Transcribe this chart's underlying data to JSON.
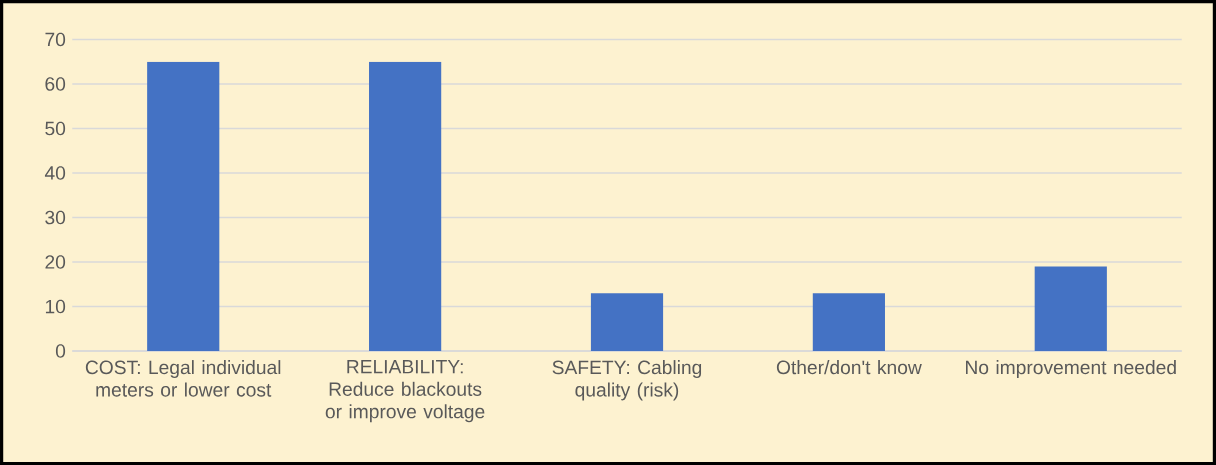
{
  "chart_data": {
    "type": "bar",
    "categories": [
      "COST: Legal individual meters or lower cost",
      "RELIABILITY: Reduce blackouts or improve voltage",
      "SAFETY: Cabling quality (risk)",
      "Other/don't know",
      "No improvement needed"
    ],
    "values": [
      65,
      65,
      13,
      13,
      19
    ],
    "color": "#4472c4",
    "ylim": [
      0,
      70
    ],
    "yticks": [
      0,
      10,
      20,
      30,
      40,
      50,
      60,
      70
    ],
    "grid": "y"
  }
}
